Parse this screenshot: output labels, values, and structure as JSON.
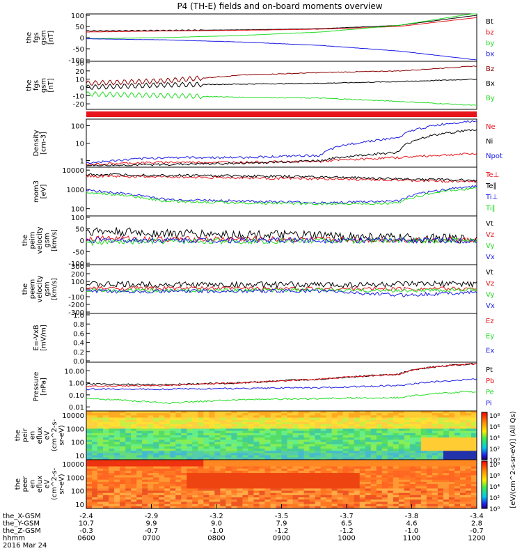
{
  "title": "P4 (TH-E) fields and on-board moments overview",
  "colors": {
    "black": "#000000",
    "red": "#e8141b",
    "green": "#22dd22",
    "blue": "#1a1ae6",
    "darkred": "#8b0000"
  },
  "chart_data": [
    {
      "id": "p1",
      "type": "line",
      "ylabel": [
        "the",
        "fgs",
        "gsm",
        "[nT]"
      ],
      "yticks": [
        "100",
        "50",
        "0",
        "-50",
        "-100"
      ],
      "ylim": [
        -100,
        100
      ],
      "ytickvals": [
        100,
        50,
        0,
        -50,
        -100
      ],
      "series": [
        {
          "name": "Bt",
          "color": "black",
          "values": [
            30,
            32,
            35,
            40,
            55,
            100
          ]
        },
        {
          "name": "bz",
          "color": "red",
          "values": [
            25,
            30,
            33,
            38,
            50,
            90
          ]
        },
        {
          "name": "by",
          "color": "green",
          "values": [
            -5,
            0,
            10,
            25,
            55,
            110
          ]
        },
        {
          "name": "bx",
          "color": "blue",
          "values": [
            -5,
            -10,
            -20,
            -35,
            -60,
            -100
          ]
        }
      ]
    },
    {
      "id": "p2",
      "type": "line",
      "ylabel": [
        "the",
        "fgs",
        "gsm",
        "[nT]"
      ],
      "yticks": [
        "30",
        "20",
        "10",
        "0",
        "-10",
        "-20"
      ],
      "ylim": [
        -25,
        30
      ],
      "ytickvals": [
        30,
        20,
        10,
        0,
        -10,
        -20
      ],
      "series": [
        {
          "name": "Bz",
          "color": "darkred",
          "values": [
            5,
            8,
            15,
            18,
            20,
            26
          ]
        },
        {
          "name": "Bx",
          "color": "black",
          "values": [
            0,
            3,
            4,
            5,
            7,
            10
          ]
        },
        {
          "name": "By",
          "color": "green",
          "values": [
            -8,
            -10,
            -12,
            -13,
            -17,
            -22
          ]
        }
      ]
    },
    {
      "id": "p3",
      "type": "line",
      "ylabel": [
        "Density",
        "[cm-3]"
      ],
      "yticks": [
        "100",
        "10",
        "1"
      ],
      "ylog": true,
      "ylim": [
        0.5,
        200
      ],
      "ytickvals": [
        100,
        10,
        1
      ],
      "series": [
        {
          "name": "Ne",
          "color": "red",
          "values": [
            0.6,
            0.8,
            0.8,
            0.9,
            1.5,
            2.5
          ]
        },
        {
          "name": "Ni",
          "color": "black",
          "values": [
            0.5,
            0.6,
            0.7,
            1.0,
            3,
            60
          ]
        },
        {
          "name": "Npot",
          "color": "blue",
          "values": [
            0.7,
            1.5,
            1.5,
            2,
            20,
            200
          ]
        }
      ]
    },
    {
      "id": "p4",
      "type": "line",
      "ylabel": [
        "mom3",
        "[eV]"
      ],
      "yticks": [
        "10000",
        "1000",
        "100"
      ],
      "ylog": true,
      "ylim": [
        50,
        12000
      ],
      "ytickvals": [
        10000,
        1000,
        100
      ],
      "series": [
        {
          "name": "Te⊥",
          "color": "red",
          "values": [
            5000,
            4500,
            4000,
            3500,
            3000,
            2500
          ]
        },
        {
          "name": "Te∥",
          "color": "black",
          "values": [
            6000,
            5500,
            5000,
            4500,
            3500,
            3000
          ]
        },
        {
          "name": "Ti⊥",
          "color": "blue",
          "values": [
            900,
            300,
            250,
            200,
            250,
            1500
          ]
        },
        {
          "name": "Ti∥",
          "color": "green",
          "values": [
            700,
            250,
            200,
            180,
            200,
            1200
          ]
        }
      ]
    },
    {
      "id": "p5",
      "type": "line",
      "ylabel": [
        "the",
        "peim",
        "velocity",
        "gsm",
        "[km/s]"
      ],
      "yticks": [
        "100",
        "50",
        "0",
        "-50",
        "-100"
      ],
      "ylim": [
        -100,
        100
      ],
      "ytickvals": [
        100,
        50,
        0,
        -50,
        -100
      ],
      "series": [
        {
          "name": "Vt",
          "color": "black",
          "values": [
            40,
            30,
            25,
            20,
            10,
            5
          ]
        },
        {
          "name": "Vz",
          "color": "red",
          "values": [
            10,
            5,
            5,
            3,
            2,
            1
          ]
        },
        {
          "name": "Vy",
          "color": "green",
          "values": [
            -10,
            -5,
            -3,
            -2,
            -1,
            0
          ]
        },
        {
          "name": "Vx",
          "color": "blue",
          "values": [
            0,
            0,
            0,
            0,
            0,
            0
          ]
        }
      ]
    },
    {
      "id": "p6",
      "type": "line",
      "ylabel": [
        "the",
        "peem",
        "velocity",
        "gsm",
        "[km/s]"
      ],
      "yticks": [
        "300",
        "200",
        "100",
        "0",
        "-100",
        "-200",
        "-300"
      ],
      "ylim": [
        -300,
        300
      ],
      "ytickvals": [
        300,
        200,
        100,
        0,
        -100,
        -200,
        -300
      ],
      "series": [
        {
          "name": "Vt",
          "color": "black",
          "values": [
            60,
            60,
            55,
            55,
            60,
            70
          ]
        },
        {
          "name": "Vz",
          "color": "red",
          "values": [
            10,
            10,
            10,
            5,
            5,
            5
          ]
        },
        {
          "name": "Vy",
          "color": "green",
          "values": [
            -20,
            -20,
            -15,
            -15,
            -20,
            -10
          ]
        },
        {
          "name": "Vx",
          "color": "blue",
          "values": [
            -30,
            -30,
            -25,
            -25,
            -80,
            -40
          ]
        }
      ]
    },
    {
      "id": "p7",
      "type": "line",
      "ylabel": [
        "E=-VxB",
        "[mV/m]"
      ],
      "yticks": [
        "1.0",
        "0.8",
        "0.6",
        "0.4",
        "0.2",
        "0.0"
      ],
      "ylim": [
        0,
        1
      ],
      "ytickvals": [
        1,
        0.8,
        0.6,
        0.4,
        0.2,
        0
      ],
      "series": [
        {
          "name": "Ez",
          "color": "red",
          "values": []
        },
        {
          "name": "Ey",
          "color": "green",
          "values": []
        },
        {
          "name": "Ex",
          "color": "blue",
          "values": []
        }
      ]
    },
    {
      "id": "p8",
      "type": "line",
      "ylabel": [
        "Pressure",
        "[nPa]"
      ],
      "yticks": [
        "10.00",
        "1.00",
        "0.10",
        "0.01"
      ],
      "ylog": true,
      "ylim": [
        0.006,
        40
      ],
      "ytickvals": [
        10,
        1,
        0.1,
        0.01
      ],
      "series": [
        {
          "name": "Pt",
          "color": "black",
          "values": [
            0.8,
            0.7,
            1.0,
            2.0,
            5,
            40
          ]
        },
        {
          "name": "Pb",
          "color": "red",
          "values": [
            0.5,
            0.6,
            1.0,
            2.0,
            5,
            40
          ]
        },
        {
          "name": "Pe",
          "color": "green",
          "values": [
            0.05,
            0.02,
            0.04,
            0.05,
            0.06,
            0.2
          ]
        },
        {
          "name": "Pi",
          "color": "blue",
          "values": [
            0.3,
            0.3,
            0.35,
            0.4,
            0.6,
            2
          ]
        }
      ]
    },
    {
      "id": "s1",
      "type": "heatmap",
      "ylabel": [
        "the",
        "peir",
        "en",
        "eflux",
        "eV",
        "(cm^2-s-",
        "sr-eV)"
      ],
      "yticks": [
        "10000",
        "1000",
        "100",
        "10"
      ]
    },
    {
      "id": "s2",
      "type": "heatmap",
      "ylabel": [
        "the",
        "peer",
        "en",
        "eflux",
        "eV",
        "(cm^2-s-",
        "sr-eV)"
      ],
      "yticks": [
        "10000",
        "1000",
        "100",
        "10"
      ]
    }
  ],
  "colorbar": {
    "ticks": [
      "10⁸",
      "10⁶",
      "10⁴",
      "10²",
      "10⁰",
      "10⁸",
      "10⁶",
      "10⁴",
      "10²",
      "10⁰"
    ],
    "label": "[eV/(cm^2-s-sr-eV)] (All Qs)"
  },
  "xaxis": {
    "labels": [
      "0600",
      "0700",
      "0800",
      "0900",
      "1000",
      "1100",
      "1200"
    ],
    "rows": [
      {
        "name": "the_X-GSM",
        "values": [
          "-2.4",
          "-2.9",
          "-3.2",
          "-3.5",
          "-3.7",
          "-3.8",
          "-3.4"
        ]
      },
      {
        "name": "the_Y-GSM",
        "values": [
          "10.7",
          "9.9",
          "9.0",
          "7.9",
          "6.5",
          "4.6",
          "2.8"
        ]
      },
      {
        "name": "the_Z-GSM",
        "values": [
          "-0.3",
          "-0.7",
          "-1.0",
          "-1.2",
          "-1.2",
          "-1.0",
          "-0.7"
        ]
      },
      {
        "name": "hhmm",
        "values": [
          "0600",
          "0700",
          "0800",
          "0900",
          "1000",
          "1100",
          "1200"
        ]
      }
    ],
    "date": "2016 Mar 24"
  }
}
